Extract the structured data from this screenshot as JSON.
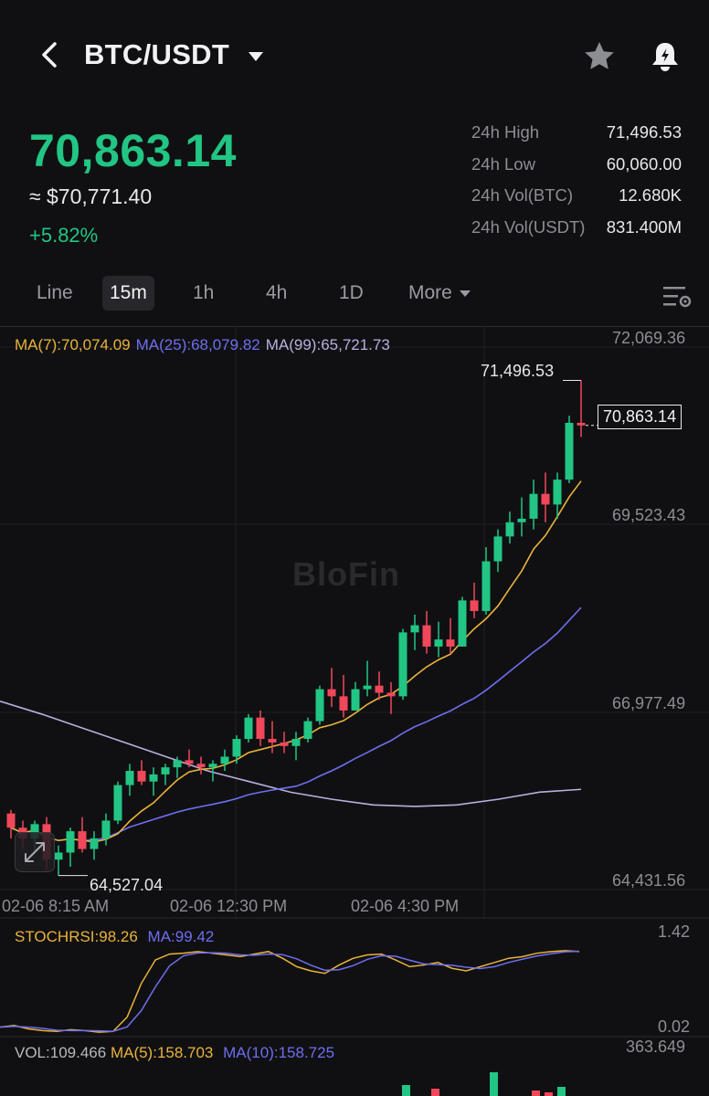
{
  "header": {
    "title": "BTC/USDT",
    "icons": {
      "back": "chevron-left-icon",
      "dropdown": "caret-down-icon",
      "favorite": "star-icon",
      "alert": "bell-alert-icon"
    }
  },
  "ticker": {
    "last_price": "70,863.14",
    "approx_usd": "≈ $70,771.40",
    "change_pct": "+5.82%",
    "stats": [
      {
        "label": "24h High",
        "value": "71,496.53"
      },
      {
        "label": "24h Low",
        "value": "60,060.00"
      },
      {
        "label": "24h Vol(BTC)",
        "value": "12.680K"
      },
      {
        "label": "24h Vol(USDT)",
        "value": "831.400M"
      }
    ]
  },
  "tabs": [
    {
      "label": "Line",
      "active": false
    },
    {
      "label": "15m",
      "active": true
    },
    {
      "label": "1h",
      "active": false
    },
    {
      "label": "4h",
      "active": false
    },
    {
      "label": "1D",
      "active": false
    },
    {
      "label": "More",
      "active": false
    }
  ],
  "chart": {
    "ma7_label": "MA(7):70,074.09",
    "ma25_label": "MA(25):68,079.82",
    "ma99_label": "MA(99):65,721.73",
    "watermark": "BloFin",
    "price_tag": "70,863.14",
    "high_marker": "71,496.53",
    "low_marker": "64,527.04",
    "y_ticks": [
      "72,069.36",
      "69,523.43",
      "66,977.49",
      "64,431.56"
    ],
    "x_ticks": [
      "02-06 8:15 AM",
      "02-06 12:30 PM",
      "02-06 4:30 PM"
    ],
    "colors": {
      "up": "#22c584",
      "down": "#f0485a",
      "ma7": "#e9b33c",
      "ma25": "#6f6ef0",
      "ma99": "#b8b0e0"
    }
  },
  "stoch": {
    "label": "STOCHRSI:98.26",
    "ma_label": "MA:99.42",
    "top": "1.42",
    "bottom": "0.02"
  },
  "volume": {
    "label": "VOL:109.466",
    "ma5_label": "MA(5):158.703",
    "ma10_label": "MA(10):158.725",
    "top": "363.649"
  },
  "chart_data": {
    "type": "candlestick",
    "ylim": [
      64431.56,
      72069.36
    ],
    "candles": [
      [
        65400,
        65450,
        65050,
        65200
      ],
      [
        65200,
        65300,
        64900,
        65050
      ],
      [
        65050,
        65300,
        64850,
        65250
      ],
      [
        65250,
        65350,
        64600,
        64750
      ],
      [
        64750,
        64950,
        64527.04,
        64850
      ],
      [
        64850,
        65200,
        64650,
        65150
      ],
      [
        65150,
        65350,
        64850,
        64900
      ],
      [
        64900,
        65150,
        64750,
        65050
      ],
      [
        65050,
        65400,
        64950,
        65300
      ],
      [
        65300,
        65850,
        65250,
        65800
      ],
      [
        65800,
        66100,
        65650,
        66000
      ],
      [
        66000,
        66150,
        65800,
        65850
      ],
      [
        65850,
        66050,
        65650,
        65950
      ],
      [
        65950,
        66100,
        65800,
        66050
      ],
      [
        66050,
        66200,
        65900,
        66150
      ],
      [
        66150,
        66300,
        66050,
        66100
      ],
      [
        66100,
        66200,
        65950,
        66050
      ],
      [
        66050,
        66150,
        65850,
        66100
      ],
      [
        66100,
        66300,
        66000,
        66200
      ],
      [
        66200,
        66500,
        66100,
        66450
      ],
      [
        66450,
        66800,
        66400,
        66750
      ],
      [
        66750,
        66850,
        66350,
        66450
      ],
      [
        66450,
        66700,
        66250,
        66400
      ],
      [
        66400,
        66550,
        66250,
        66350
      ],
      [
        66350,
        66550,
        66150,
        66450
      ],
      [
        66450,
        66750,
        66400,
        66700
      ],
      [
        66700,
        67200,
        66650,
        67150
      ],
      [
        67150,
        67450,
        66900,
        67050
      ],
      [
        67050,
        67350,
        66750,
        66850
      ],
      [
        66850,
        67250,
        66850,
        67150
      ],
      [
        67150,
        67550,
        67050,
        67200
      ],
      [
        67200,
        67400,
        67000,
        67100
      ],
      [
        67100,
        67250,
        66800,
        67050
      ],
      [
        67050,
        68000,
        67000,
        67950
      ],
      [
        67950,
        68200,
        67700,
        68050
      ],
      [
        68050,
        68250,
        67650,
        67750
      ],
      [
        67750,
        68100,
        67600,
        67850
      ],
      [
        67850,
        68150,
        67650,
        67750
      ],
      [
        67750,
        68450,
        67750,
        68400
      ],
      [
        68400,
        68650,
        68150,
        68250
      ],
      [
        68250,
        69150,
        68200,
        68950
      ],
      [
        68950,
        69400,
        68800,
        69300
      ],
      [
        69300,
        69650,
        69200,
        69500
      ],
      [
        69500,
        69850,
        69300,
        69550
      ],
      [
        69550,
        70100,
        69400,
        69900
      ],
      [
        69900,
        70200,
        69500,
        69750
      ],
      [
        69750,
        70200,
        69550,
        70100
      ],
      [
        70100,
        71000,
        70050,
        70900
      ],
      [
        70900,
        71496.53,
        70700,
        70863.14
      ]
    ],
    "ma99_series": [
      66980,
      66800,
      66600,
      66400,
      66200,
      66000,
      65850,
      65700,
      65600,
      65520,
      65500,
      65520,
      65600,
      65700,
      65740
    ]
  }
}
